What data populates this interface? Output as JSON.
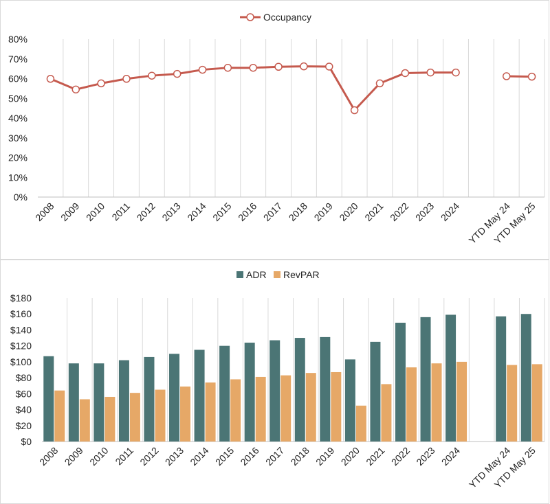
{
  "chart_data": [
    {
      "type": "line",
      "categories": [
        "2008",
        "2009",
        "2010",
        "2011",
        "2012",
        "2013",
        "2014",
        "2015",
        "2016",
        "2017",
        "2018",
        "2019",
        "2020",
        "2021",
        "2022",
        "2023",
        "2024",
        "",
        "YTD May 24",
        "YTD May 25"
      ],
      "series": [
        {
          "name": "Occupancy",
          "color": "#c55a4e",
          "values": [
            59.9,
            54.5,
            57.6,
            59.9,
            61.5,
            62.4,
            64.5,
            65.5,
            65.5,
            66.0,
            66.2,
            66.1,
            44.0,
            57.6,
            62.8,
            63.1,
            63.1,
            null,
            61.2,
            61.0
          ]
        }
      ],
      "y_ticks": [
        "0%",
        "10%",
        "20%",
        "30%",
        "40%",
        "50%",
        "60%",
        "70%",
        "80%"
      ],
      "ylim": [
        0,
        80
      ],
      "grid": "vertical",
      "legend_position": "top-center"
    },
    {
      "type": "bar",
      "categories": [
        "2008",
        "2009",
        "2010",
        "2011",
        "2012",
        "2013",
        "2014",
        "2015",
        "2016",
        "2017",
        "2018",
        "2019",
        "2020",
        "2021",
        "2022",
        "2023",
        "2024",
        "",
        "YTD May 24",
        "YTD May 25"
      ],
      "series": [
        {
          "name": "ADR",
          "color": "#4b7575",
          "values": [
            107,
            98,
            98,
            102,
            106,
            110,
            115,
            120,
            124,
            127,
            130,
            131,
            103,
            125,
            149,
            156,
            159,
            null,
            157,
            160
          ]
        },
        {
          "name": "RevPAR",
          "color": "#e6a867",
          "values": [
            64,
            53,
            56,
            61,
            65,
            69,
            74,
            78,
            81,
            83,
            86,
            87,
            45,
            72,
            93,
            98,
            100,
            null,
            96,
            97
          ]
        }
      ],
      "y_ticks": [
        "$0",
        "$20",
        "$40",
        "$60",
        "$80",
        "$100",
        "$120",
        "$140",
        "$160",
        "$180"
      ],
      "ylim": [
        0,
        180
      ],
      "grid": "vertical",
      "legend_position": "top-center"
    }
  ]
}
